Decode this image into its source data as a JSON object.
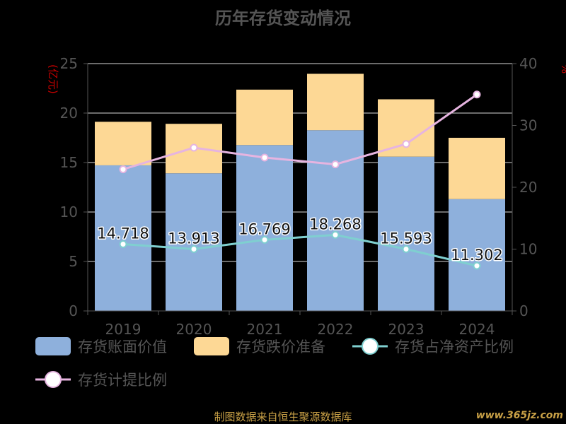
{
  "title": "历年存货变动情况",
  "left_unit": "(亿元)",
  "right_unit": "%",
  "source": "制图数据来自恒生聚源数据库",
  "watermark": "www.365jz.com",
  "colors": {
    "book_value": "#8eb0dc",
    "impairment": "#fdd895",
    "ratio_net_assets": "#7fcfd0",
    "provision_ratio": "#e6b4e0",
    "axis": "#555555",
    "grid": "#d9d9d9"
  },
  "chart_data": {
    "type": "bar",
    "stacked": true,
    "categories": [
      "2019",
      "2020",
      "2021",
      "2022",
      "2023",
      "2024"
    ],
    "series": [
      {
        "name": "存货账面价值",
        "type": "bar",
        "axis": "left",
        "values": [
          14.718,
          13.913,
          16.769,
          18.268,
          15.593,
          11.302
        ],
        "labels": [
          "14.718",
          "13.913",
          "16.769",
          "18.268",
          "15.593",
          "11.302"
        ]
      },
      {
        "name": "存货跌价准备",
        "type": "bar",
        "axis": "left",
        "values": [
          4.4,
          5.0,
          5.6,
          5.7,
          5.8,
          6.2
        ]
      },
      {
        "name": "存货占净资产比例",
        "type": "line",
        "axis": "right",
        "values": [
          10.8,
          10.0,
          11.5,
          12.3,
          10.0,
          7.3
        ]
      },
      {
        "name": "存货计提比例",
        "type": "line",
        "axis": "right",
        "values": [
          22.9,
          26.4,
          24.8,
          23.7,
          27.0,
          35.0
        ]
      }
    ],
    "left_axis": {
      "ylim": [
        0,
        25
      ],
      "ticks": [
        "0",
        "5",
        "10",
        "15",
        "20",
        "25"
      ]
    },
    "right_axis": {
      "ylim": [
        0,
        40
      ],
      "ticks": [
        "0",
        "10",
        "20",
        "30",
        "40"
      ]
    },
    "grid": true,
    "legend_position": "bottom"
  }
}
